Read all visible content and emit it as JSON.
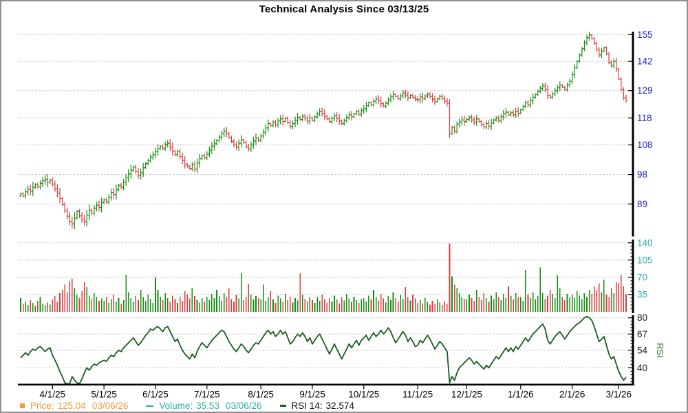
{
  "title": "Technical Analysis Since 03/13/25",
  "legend": {
    "price": {
      "label": "Price:",
      "value": "125.04",
      "date": "03/06/26"
    },
    "volume": {
      "label": "Volume:",
      "value": "35.53",
      "date": "03/06/26"
    },
    "rsi": {
      "label": "RSI 14:",
      "value": "32.574"
    }
  },
  "colors": {
    "up": "#0f8f0f",
    "down": "#e03a3a",
    "rsi_line": "#1a5c1e",
    "price_axis_text": "#2323cd",
    "volume_axis_text": "#24b0b0",
    "rsi_axis_text": "#1a1a1a",
    "rsi_side_label": "#2e6b2e",
    "grid": "#cccccc",
    "axis": "#000000",
    "legend_price": "#f79a38",
    "legend_volume": "#29adad",
    "frame": "#8f8f8f"
  },
  "chart_data": {
    "type": "ohlc+volume+rsi",
    "title": "Technical Analysis Since 03/13/25",
    "start_date": "03/13/25",
    "end_date": "03/06/26",
    "x_axis": {
      "tick_labels": [
        "4/1/25",
        "5/1/25",
        "6/1/25",
        "7/1/25",
        "8/1/25",
        "9/1/25",
        "10/1/25",
        "11/1/25",
        "12/1/25",
        "1/1/26",
        "2/1/26",
        "3/1/26"
      ],
      "tick_bar_indices": [
        13,
        34,
        55,
        76,
        98,
        119,
        140,
        162,
        182,
        204,
        225,
        244
      ]
    },
    "price_panel": {
      "scale": "log",
      "axis_ticks": [
        155,
        142,
        129,
        118,
        108,
        98,
        89
      ],
      "closes": [
        92.0,
        91.4,
        92.6,
        93.4,
        92.8,
        94.0,
        94.8,
        94.2,
        95.2,
        96.0,
        96.5,
        95.6,
        96.2,
        95.0,
        93.6,
        92.2,
        90.6,
        88.8,
        87.0,
        85.5,
        84.0,
        83.4,
        85.0,
        86.8,
        85.6,
        84.6,
        84.0,
        85.8,
        87.2,
        86.4,
        87.8,
        88.6,
        88.0,
        89.4,
        90.2,
        89.6,
        91.0,
        92.4,
        91.8,
        93.2,
        94.6,
        94.0,
        95.6,
        97.0,
        98.2,
        99.4,
        100.4,
        99.0,
        97.6,
        98.6,
        100.2,
        101.6,
        102.6,
        103.8,
        104.6,
        105.6,
        106.6,
        107.4,
        106.8,
        108.2,
        108.6,
        107.2,
        105.8,
        104.6,
        105.6,
        104.0,
        102.6,
        101.4,
        100.6,
        100.0,
        101.2,
        99.8,
        101.8,
        103.2,
        104.2,
        103.6,
        104.8,
        106.2,
        107.6,
        108.4,
        109.6,
        110.8,
        112.0,
        113.0,
        112.2,
        110.6,
        109.2,
        108.0,
        107.2,
        108.6,
        109.8,
        108.8,
        107.4,
        106.6,
        108.0,
        109.4,
        110.4,
        109.6,
        111.2,
        112.6,
        114.2,
        115.8,
        115.0,
        116.4,
        115.4,
        116.8,
        117.6,
        116.6,
        117.8,
        116.2,
        114.8,
        115.8,
        117.0,
        118.2,
        117.4,
        118.6,
        117.8,
        116.8,
        118.0,
        117.0,
        118.4,
        119.6,
        120.6,
        119.8,
        118.6,
        117.6,
        116.6,
        117.8,
        118.8,
        117.8,
        116.8,
        115.8,
        117.0,
        118.2,
        119.2,
        118.4,
        119.6,
        120.4,
        119.4,
        120.8,
        121.6,
        122.8,
        124.0,
        123.2,
        124.6,
        125.6,
        124.8,
        123.6,
        122.6,
        123.8,
        125.2,
        126.4,
        127.4,
        126.6,
        125.6,
        126.8,
        128.0,
        127.2,
        126.0,
        127.0,
        126.2,
        125.4,
        125.2,
        126.4,
        125.6,
        126.8,
        127.4,
        126.6,
        125.4,
        124.4,
        125.6,
        126.6,
        125.8,
        124.6,
        123.8,
        112.0,
        114.4,
        112.8,
        115.6,
        116.4,
        117.2,
        116.6,
        117.4,
        118.2,
        117.2,
        116.4,
        117.6,
        116.6,
        115.4,
        114.6,
        115.8,
        114.8,
        116.0,
        117.2,
        118.0,
        117.0,
        118.4,
        119.6,
        120.2,
        119.2,
        120.0,
        119.2,
        120.6,
        119.8,
        121.2,
        122.6,
        124.0,
        123.2,
        124.8,
        126.2,
        127.4,
        128.8,
        130.0,
        131.0,
        129.6,
        127.0,
        126.2,
        127.6,
        129.0,
        130.2,
        131.4,
        130.4,
        129.4,
        131.5,
        133.0,
        136.0,
        139.0,
        142.0,
        145.0,
        148.0,
        151.0,
        153.5,
        154.8,
        153.0,
        150.5,
        147.5,
        145.0,
        146.8,
        148.5,
        145.5,
        141.5,
        140.0,
        142.0,
        138.5,
        134.0,
        129.5,
        126.0,
        125.04
      ]
    },
    "volume_panel": {
      "axis_ticks": [
        140,
        105,
        70,
        35
      ],
      "values": [
        28,
        16,
        20,
        14,
        24,
        18,
        12,
        22,
        30,
        17,
        13,
        19,
        15,
        25,
        32,
        20,
        38,
        45,
        55,
        40,
        62,
        68,
        48,
        35,
        28,
        42,
        60,
        50,
        33,
        26,
        38,
        30,
        22,
        27,
        22,
        30,
        18,
        26,
        35,
        21,
        28,
        16,
        24,
        75,
        40,
        28,
        20,
        32,
        24,
        45,
        30,
        22,
        35,
        26,
        18,
        70,
        45,
        30,
        24,
        38,
        28,
        20,
        33,
        25,
        18,
        30,
        22,
        42,
        35,
        27,
        48,
        32,
        24,
        19,
        28,
        21,
        30,
        24,
        36,
        28,
        45,
        32,
        22,
        38,
        30,
        48,
        26,
        20,
        34,
        27,
        78,
        24,
        30,
        56,
        35,
        25,
        32,
        28,
        26,
        55,
        22,
        30,
        42,
        25,
        18,
        33,
        27,
        20,
        36,
        24,
        31,
        19,
        28,
        23,
        78,
        35,
        26,
        21,
        30,
        24,
        18,
        30,
        22,
        35,
        26,
        19,
        28,
        21,
        33,
        25,
        17,
        29,
        23,
        36,
        27,
        20,
        31,
        24,
        18,
        26,
        28,
        21,
        33,
        25,
        45,
        30,
        22,
        36,
        27,
        19,
        32,
        24,
        40,
        28,
        21,
        34,
        26,
        50,
        30,
        23,
        35,
        27,
        18,
        24,
        16,
        28,
        20,
        15,
        22,
        17,
        25,
        19,
        14,
        21,
        16,
        138,
        72,
        55,
        48,
        38,
        30,
        26,
        26,
        35,
        28,
        22,
        45,
        30,
        24,
        38,
        28,
        20,
        33,
        26,
        40,
        30,
        24,
        36,
        28,
        52,
        32,
        25,
        38,
        30,
        30,
        22,
        85,
        35,
        28,
        40,
        25,
        32,
        90,
        38,
        26,
        33,
        45,
        36,
        28,
        74,
        48,
        30,
        24,
        36,
        29,
        35,
        28,
        42,
        33,
        26,
        38,
        30,
        45,
        36,
        52,
        44,
        58,
        40,
        65,
        35,
        30,
        48,
        38,
        60,
        58,
        75,
        52,
        35.53
      ]
    },
    "rsi_panel": {
      "axis_label": "RSI",
      "period": 14,
      "axis_ticks": [
        80,
        67,
        54,
        40
      ],
      "values": [
        48,
        50,
        52,
        50,
        53,
        55,
        54,
        56,
        57,
        55,
        53,
        55,
        56,
        50,
        46,
        42,
        37,
        33,
        28,
        24,
        26,
        33,
        30,
        28,
        26,
        31,
        36,
        40,
        38,
        41,
        43,
        42,
        44,
        45,
        46,
        45,
        48,
        50,
        49,
        52,
        54,
        53,
        56,
        58,
        60,
        62,
        64,
        61,
        58,
        60,
        63,
        66,
        68,
        71,
        70,
        72,
        73,
        71,
        69,
        72,
        73,
        69,
        65,
        61,
        63,
        58,
        54,
        51,
        49,
        47,
        51,
        48,
        53,
        57,
        60,
        58,
        56,
        59,
        62,
        64,
        66,
        68,
        70,
        69,
        65,
        61,
        58,
        55,
        53,
        56,
        59,
        57,
        54,
        52,
        55,
        58,
        60,
        59,
        62,
        65,
        68,
        70,
        67,
        69,
        65,
        67,
        70,
        67,
        69,
        64,
        59,
        61,
        64,
        67,
        65,
        68,
        65,
        61,
        64,
        59,
        62,
        65,
        67,
        63,
        59,
        55,
        51,
        55,
        59,
        55,
        51,
        47,
        51,
        55,
        59,
        56,
        59,
        62,
        58,
        62,
        64,
        66,
        62,
        65,
        68,
        65,
        67,
        70,
        67,
        69,
        72,
        69,
        64,
        60,
        63,
        66,
        69,
        66,
        61,
        64,
        61,
        57,
        58,
        62,
        60,
        63,
        66,
        63,
        59,
        55,
        58,
        61,
        59,
        56,
        53,
        28,
        33,
        30,
        36,
        40,
        42,
        44,
        46,
        48,
        46,
        43,
        45,
        43,
        41,
        39,
        42,
        40,
        43,
        46,
        49,
        47,
        50,
        53,
        56,
        53,
        56,
        53,
        57,
        55,
        58,
        61,
        64,
        61,
        64,
        67,
        69,
        71,
        73,
        75,
        71,
        62,
        59,
        62,
        65,
        67,
        69,
        66,
        63,
        66,
        69,
        71,
        73,
        75,
        76,
        78,
        80,
        81,
        80,
        78,
        73,
        67,
        61,
        63,
        65,
        58,
        51,
        47,
        49,
        43,
        37,
        33,
        30,
        32.574
      ]
    }
  }
}
